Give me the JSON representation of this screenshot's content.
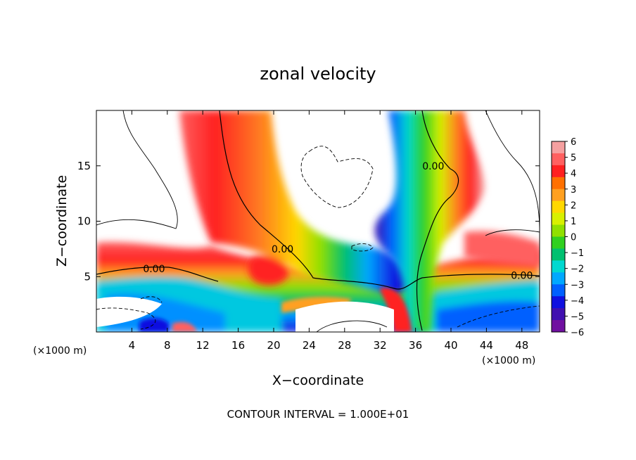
{
  "chart_data": {
    "type": "heatmap",
    "title": "zonal velocity",
    "xlabel": "X−coordinate",
    "ylabel": "Z−coordinate",
    "x_unit_left": "(×1000 m)",
    "x_unit_right": "(×1000 m)",
    "footer": "CONTOUR INTERVAL = 1.000E+01",
    "xlim": [
      0,
      50
    ],
    "ylim": [
      0,
      20
    ],
    "x_ticks": [
      4,
      8,
      12,
      16,
      20,
      24,
      28,
      32,
      36,
      40,
      44,
      48
    ],
    "y_ticks": [
      5,
      10,
      15
    ],
    "colorbar": {
      "range": [
        -6,
        6
      ],
      "tick_values": [
        6,
        5,
        4,
        3,
        2,
        1,
        0,
        -1,
        -2,
        -3,
        -4,
        -5,
        -6
      ],
      "tick_labels": [
        "6",
        "5",
        "4",
        "3",
        "2",
        "1",
        "0",
        "−1",
        "−2",
        "−3",
        "−4",
        "−5",
        "−6"
      ],
      "colors": [
        "#f5a0a0",
        "#ff6060",
        "#ff2020",
        "#ff7000",
        "#ffa020",
        "#ffd800",
        "#d8f000",
        "#90e000",
        "#30d020",
        "#00c070",
        "#00d8d0",
        "#00a8ff",
        "#0060ff",
        "#1010e0",
        "#4010b0",
        "#7010a0"
      ]
    },
    "contour_labels": [
      {
        "text": "0.00",
        "x": 6.5,
        "y": 5.7
      },
      {
        "text": "0.00",
        "x": 21.0,
        "y": 7.5
      },
      {
        "text": "0.00",
        "x": 38.0,
        "y": 15.0
      },
      {
        "text": "0.00",
        "x": 48.0,
        "y": 5.1
      }
    ]
  }
}
